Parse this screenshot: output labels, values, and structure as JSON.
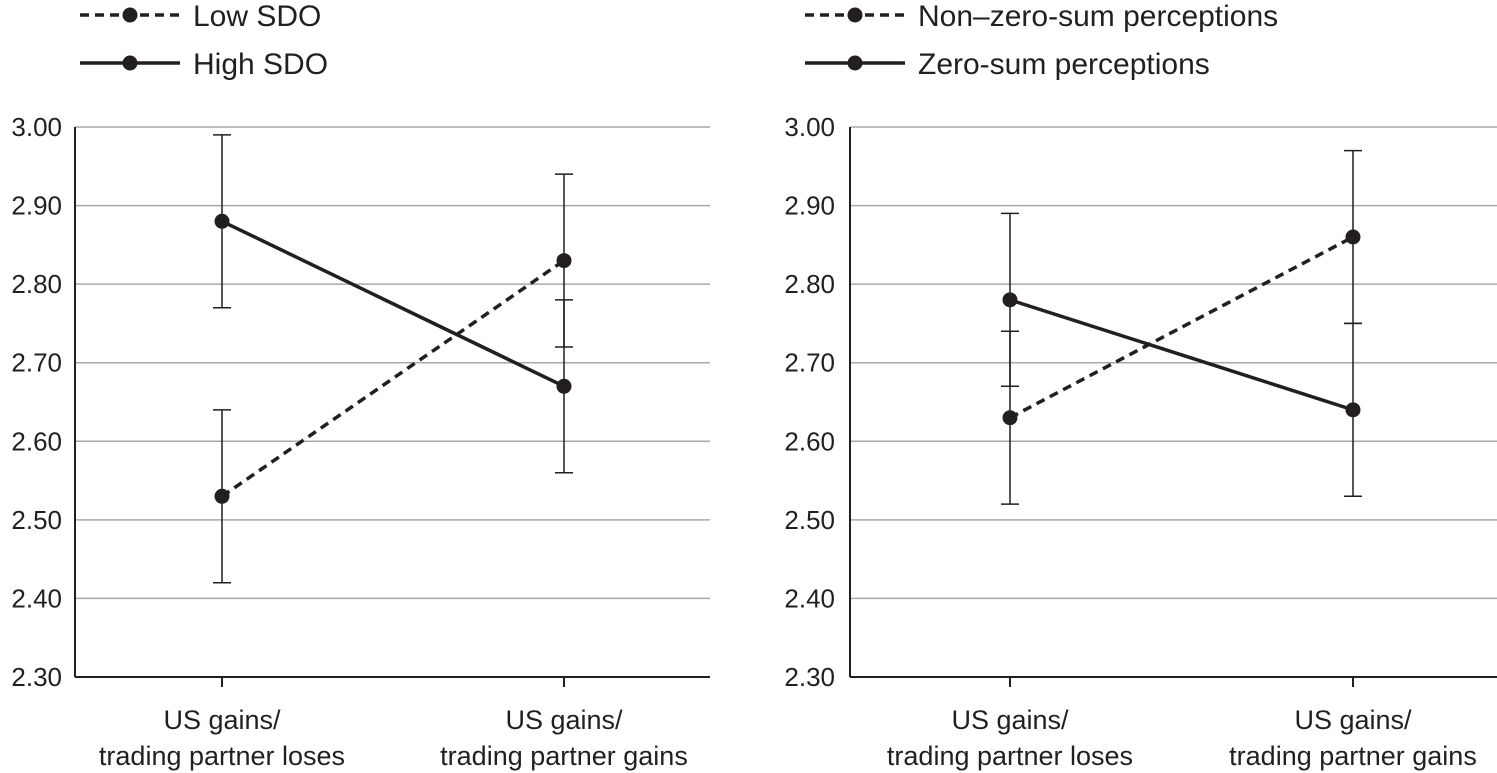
{
  "colors": {
    "ink": "#231f20",
    "grid": "#a7a9ac"
  },
  "chart_data": [
    {
      "type": "line",
      "categories": [
        [
          "US gains/",
          "trading partner loses"
        ],
        [
          "US gains/",
          "trading partner gains"
        ]
      ],
      "ylim": [
        2.3,
        3.0
      ],
      "yticks": [
        "2.30",
        "2.40",
        "2.50",
        "2.60",
        "2.70",
        "2.80",
        "2.90",
        "3.00"
      ],
      "grid": true,
      "legend_position": "top-left",
      "series": [
        {
          "name": "Low SDO",
          "style": "dashed",
          "values": [
            2.53,
            2.83
          ],
          "error_low": [
            2.42,
            2.72
          ],
          "error_high": [
            2.64,
            2.94
          ]
        },
        {
          "name": "High SDO",
          "style": "solid",
          "values": [
            2.88,
            2.67
          ],
          "error_low": [
            2.77,
            2.56
          ],
          "error_high": [
            2.99,
            2.78
          ]
        }
      ]
    },
    {
      "type": "line",
      "categories": [
        [
          "US gains/",
          "trading partner loses"
        ],
        [
          "US gains/",
          "trading partner gains"
        ]
      ],
      "ylim": [
        2.3,
        3.0
      ],
      "yticks": [
        "2.30",
        "2.40",
        "2.50",
        "2.60",
        "2.70",
        "2.80",
        "2.90",
        "3.00"
      ],
      "grid": true,
      "legend_position": "top-left",
      "series": [
        {
          "name": "Non–zero-sum perceptions",
          "style": "dashed",
          "values": [
            2.63,
            2.86
          ],
          "error_low": [
            2.52,
            2.75
          ],
          "error_high": [
            2.74,
            2.97
          ]
        },
        {
          "name": "Zero-sum perceptions",
          "style": "solid",
          "values": [
            2.78,
            2.64
          ],
          "error_low": [
            2.67,
            2.53
          ],
          "error_high": [
            2.89,
            2.75
          ]
        }
      ]
    }
  ]
}
